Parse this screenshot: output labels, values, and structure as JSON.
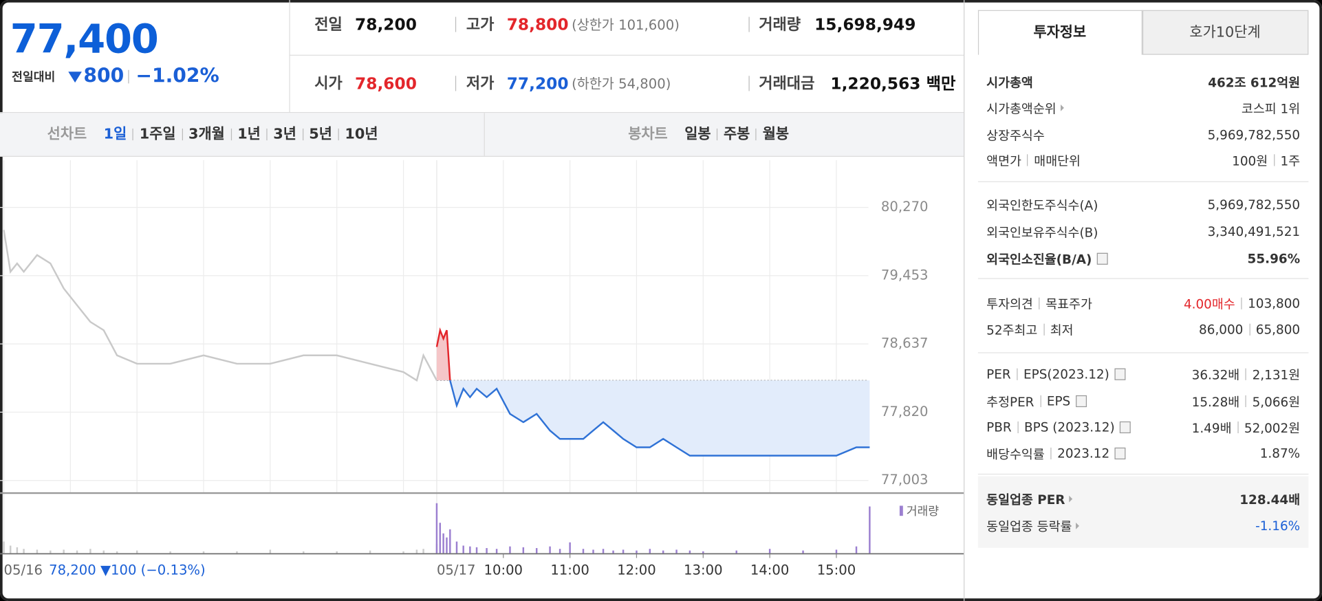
{
  "quote": {
    "price": "77,400",
    "change_label": "전일대비",
    "change": "800",
    "change_pct": "−1.02%"
  },
  "summary": {
    "prev": {
      "label": "전일",
      "value": "78,200"
    },
    "high": {
      "label": "고가",
      "value": "78,800",
      "limit": "(상한가 101,600)"
    },
    "volume": {
      "label": "거래량",
      "value": "15,698,949"
    },
    "open": {
      "label": "시가",
      "value": "78,600"
    },
    "low": {
      "label": "저가",
      "value": "77,200",
      "limit": "(하한가 54,800)"
    },
    "amount": {
      "label": "거래대금",
      "value": "1,220,563 백만"
    }
  },
  "tabs": {
    "line_label": "선차트",
    "line_periods": [
      "1일",
      "1주일",
      "3개월",
      "1년",
      "3년",
      "5년",
      "10년"
    ],
    "candle_label": "봉차트",
    "candle_periods": [
      "일봉",
      "주봉",
      "월봉"
    ]
  },
  "chart": {
    "type": "line",
    "ylim": [
      76852,
      80835
    ],
    "yticks": [
      {
        "value": 80270,
        "label": "80,270"
      },
      {
        "value": 79453,
        "label": "79,453"
      },
      {
        "value": 78637,
        "label": "78,637"
      },
      {
        "value": 77820,
        "label": "77,820"
      },
      {
        "value": 77003,
        "label": "77,003"
      }
    ],
    "xlim": [
      9,
      15.5
    ],
    "xticks": [
      {
        "value": 10,
        "label": "10:00"
      },
      {
        "value": 11,
        "label": "11:00"
      },
      {
        "value": 12,
        "label": "12:00"
      },
      {
        "value": 13,
        "label": "13:00"
      },
      {
        "value": 14,
        "label": "14:00"
      },
      {
        "value": 15,
        "label": "15:00"
      }
    ],
    "prev_close": 78200,
    "up_color": "#e3262b",
    "down_color": "#2f72d6",
    "days": [
      {
        "date": "05/16",
        "color": "#c9c9c9",
        "x": [
          9.0,
          9.1,
          9.2,
          9.3,
          9.5,
          9.7,
          9.9,
          10.1,
          10.3,
          10.5,
          10.7,
          11,
          11.5,
          12,
          12.5,
          13,
          13.5,
          14,
          14.5,
          15,
          15.2,
          15.3,
          15.5
        ],
        "values": [
          80000,
          79500,
          79600,
          79500,
          79700,
          79600,
          79300,
          79100,
          78900,
          78800,
          78500,
          78400,
          78400,
          78500,
          78400,
          78400,
          78500,
          78500,
          78400,
          78300,
          78200,
          78500,
          78200
        ],
        "volume": [
          150000,
          100000,
          80000,
          60000,
          50000,
          40000,
          50000,
          40000,
          60000,
          40000,
          30000,
          40000,
          30000,
          30000,
          30000,
          50000,
          30000,
          30000,
          40000,
          30000,
          50000,
          60000,
          120000
        ]
      },
      {
        "date": "05/17",
        "x": [
          9.0,
          9.05,
          9.1,
          9.15,
          9.2,
          9.3,
          9.4,
          9.5,
          9.6,
          9.75,
          9.9,
          10.1,
          10.3,
          10.5,
          10.7,
          10.85,
          11.0,
          11.2,
          11.35,
          11.5,
          11.65,
          11.8,
          12.0,
          12.2,
          12.4,
          12.6,
          12.8,
          13.0,
          13.5,
          14.0,
          14.5,
          15.0,
          15.3,
          15.5
        ],
        "values": [
          78600,
          78800,
          78700,
          78800,
          78200,
          77900,
          78100,
          78000,
          78100,
          78000,
          78100,
          77800,
          77700,
          77800,
          77600,
          77500,
          77500,
          77500,
          77600,
          77700,
          77600,
          77500,
          77400,
          77400,
          77500,
          77400,
          77300,
          77300,
          77300,
          77300,
          77300,
          77300,
          77400,
          77400
        ],
        "volume": [
          620000,
          380000,
          250000,
          200000,
          300000,
          150000,
          100000,
          90000,
          80000,
          70000,
          60000,
          90000,
          80000,
          70000,
          90000,
          60000,
          140000,
          60000,
          50000,
          60000,
          40000,
          50000,
          40000,
          60000,
          40000,
          50000,
          40000,
          30000,
          40000,
          60000,
          40000,
          50000,
          90000,
          580000
        ]
      }
    ],
    "volume_label": "거래량",
    "volume_color": "#9b7fd0",
    "prev_day": "78,200 ▼100 (−0.13%)"
  },
  "info": {
    "tabs": [
      "투자정보",
      "호가10단계"
    ],
    "market_cap": {
      "labels": [
        "시가총액"
      ],
      "values": [
        "462조 612억원"
      ]
    },
    "rank": {
      "labels": [
        "시가총액순위"
      ],
      "values": [
        "코스피 1위"
      ]
    },
    "shares": {
      "labels": [
        "상장주식수"
      ],
      "values": [
        "5,969,782,550"
      ]
    },
    "face": {
      "labels": [
        "액면가",
        "매매단위"
      ],
      "values": [
        "100원",
        "1주"
      ]
    },
    "foreign_limit": {
      "labels": [
        "외국인한도주식수(A)"
      ],
      "values": [
        "5,969,782,550"
      ]
    },
    "foreign_hold": {
      "labels": [
        "외국인보유주식수(B)"
      ],
      "values": [
        "3,340,491,521"
      ]
    },
    "foreign_rate": {
      "labels": [
        "외국인소진율(B/A)"
      ],
      "values": [
        "55.96%"
      ]
    },
    "opinion": {
      "labels": [
        "투자의견",
        "목표주가"
      ],
      "values": [
        "4.00매수",
        "103,800"
      ]
    },
    "week52": {
      "labels": [
        "52주최고",
        "최저"
      ],
      "values": [
        "86,000",
        "65,800"
      ]
    },
    "per": {
      "labels": [
        "PER",
        "EPS(2023.12)"
      ],
      "values": [
        "36.32배",
        "2,131원"
      ]
    },
    "est_per": {
      "labels": [
        "추정PER",
        "EPS"
      ],
      "values": [
        "15.28배",
        "5,066원"
      ]
    },
    "pbr": {
      "labels": [
        "PBR",
        "BPS (2023.12)"
      ],
      "values": [
        "1.49배",
        "52,002원"
      ]
    },
    "dividend": {
      "labels": [
        "배당수익률",
        "2023.12"
      ],
      "values": [
        "1.87%"
      ]
    },
    "industry_per": {
      "labels": [
        "동일업종 PER"
      ],
      "values": [
        "128.44배"
      ]
    },
    "industry_change": {
      "labels": [
        "동일업종 등락률"
      ],
      "values": [
        "-1.16%"
      ]
    }
  }
}
